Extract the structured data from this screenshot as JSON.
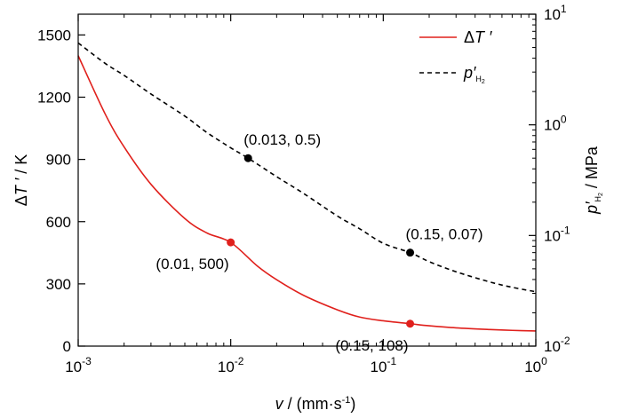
{
  "chart_data": {
    "type": "line",
    "title": "",
    "x_axis": {
      "label_var": "v",
      "label_rest": " / (mm·s",
      "label_exp": "-1",
      "label_close": ")",
      "scale": "log",
      "range": [
        0.001,
        1
      ],
      "ticks": [
        {
          "value": 0.001,
          "base": "10",
          "exp": "-3"
        },
        {
          "value": 0.01,
          "base": "10",
          "exp": "-2"
        },
        {
          "value": 0.1,
          "base": "10",
          "exp": "-1"
        },
        {
          "value": 1,
          "base": "10",
          "exp": "0"
        }
      ]
    },
    "y_left_axis": {
      "label_pre": "Δ",
      "label_var": "T ′",
      "label_unit": " / K",
      "scale": "linear",
      "range": [
        0,
        1600
      ],
      "ticks": [
        "0",
        "300",
        "600",
        "900",
        "1200",
        "1500"
      ]
    },
    "y_right_axis": {
      "label_var": "p′",
      "label_sub": "H",
      "label_subsub": "2",
      "label_unit": " / MPa",
      "scale": "log",
      "range": [
        0.01,
        10
      ],
      "ticks": [
        {
          "value": 0.01,
          "base": "10",
          "exp": "-2"
        },
        {
          "value": 0.1,
          "base": "10",
          "exp": "-1"
        },
        {
          "value": 1,
          "base": "10",
          "exp": "0"
        },
        {
          "value": 10,
          "base": "10",
          "exp": "1"
        }
      ]
    },
    "series": [
      {
        "name_pre": "Δ",
        "name_var": "T ′",
        "axis": "left",
        "color": "#e0201c",
        "style": "solid",
        "x": [
          0.001,
          0.0015,
          0.002,
          0.003,
          0.005,
          0.007,
          0.01,
          0.015,
          0.02,
          0.03,
          0.05,
          0.07,
          0.1,
          0.15,
          0.2,
          0.3,
          0.5,
          0.7,
          1.0
        ],
        "y": [
          1400,
          1120,
          960,
          780,
          615,
          545,
          500,
          385,
          320,
          245,
          175,
          140,
          122,
          108,
          98,
          88,
          80,
          76,
          73
        ]
      },
      {
        "name_var": "p′",
        "name_sub": "H",
        "name_subsub": "2",
        "axis": "right",
        "color": "#000000",
        "style": "dashed",
        "x": [
          0.001,
          0.0015,
          0.002,
          0.003,
          0.005,
          0.007,
          0.01,
          0.013,
          0.02,
          0.03,
          0.05,
          0.07,
          0.1,
          0.15,
          0.2,
          0.3,
          0.5,
          0.7,
          1.0
        ],
        "y": [
          5.5,
          3.6,
          2.8,
          1.9,
          1.2,
          0.85,
          0.62,
          0.5,
          0.34,
          0.24,
          0.15,
          0.115,
          0.085,
          0.07,
          0.058,
          0.047,
          0.038,
          0.034,
          0.031
        ]
      }
    ],
    "points": [
      {
        "series": 0,
        "x": 0.01,
        "y": 500,
        "label": "(0.01, 500)",
        "label_pos": "below-left"
      },
      {
        "series": 0,
        "x": 0.15,
        "y": 108,
        "label": "(0.15, 108)",
        "label_pos": "below-left"
      },
      {
        "series": 1,
        "x": 0.013,
        "y": 0.5,
        "label": "(0.013, 0.5)",
        "label_pos": "above-right"
      },
      {
        "series": 1,
        "x": 0.15,
        "y": 0.07,
        "label": "(0.15, 0.07)",
        "label_pos": "above-right"
      }
    ],
    "legend_position": "top-right",
    "grid": false
  }
}
